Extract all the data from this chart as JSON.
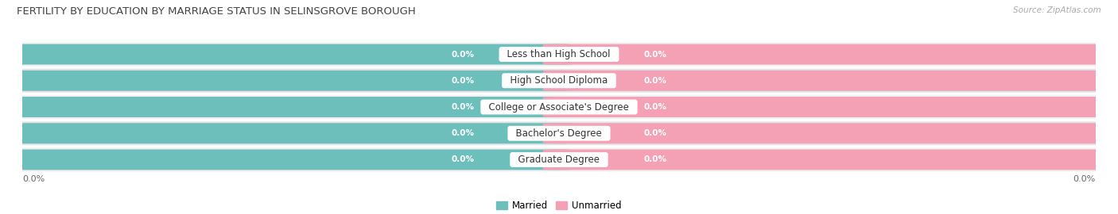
{
  "title": "FERTILITY BY EDUCATION BY MARRIAGE STATUS IN SELINSGROVE BOROUGH",
  "source": "Source: ZipAtlas.com",
  "categories": [
    "Less than High School",
    "High School Diploma",
    "College or Associate's Degree",
    "Bachelor's Degree",
    "Graduate Degree"
  ],
  "married_values": [
    0.0,
    0.0,
    0.0,
    0.0,
    0.0
  ],
  "unmarried_values": [
    0.0,
    0.0,
    0.0,
    0.0,
    0.0
  ],
  "married_color": "#6dbfbb",
  "unmarried_color": "#f4a0b5",
  "row_bg_colors": [
    "#f0f0f0",
    "#e4e4e4"
  ],
  "title_fontsize": 9.5,
  "source_fontsize": 7.5,
  "category_fontsize": 8.5,
  "value_fontsize": 7.5,
  "legend_fontsize": 8.5,
  "bar_height": 0.72,
  "background_color": "#ffffff",
  "axis_label_color": "#666666",
  "category_text_color": "#333333",
  "value_text_color": "#ffffff"
}
